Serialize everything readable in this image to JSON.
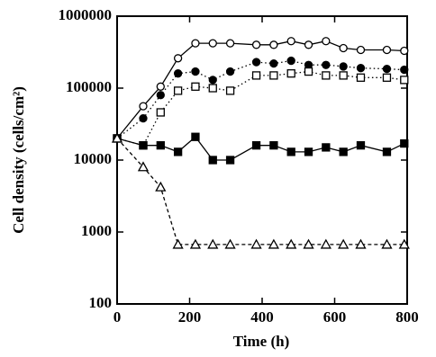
{
  "chart_data": {
    "type": "line",
    "log_y": true,
    "x_label": "Time (h)",
    "y_label": "Cell density (cells/cm²)",
    "xlim": [
      0,
      800
    ],
    "xticks": [
      0,
      200,
      400,
      600,
      800
    ],
    "ylim": [
      100,
      1000000
    ],
    "yticks": [
      100,
      1000,
      10000,
      100000,
      1000000
    ],
    "x": [
      0,
      72,
      120,
      168,
      216,
      264,
      312,
      384,
      432,
      480,
      528,
      576,
      624,
      672,
      744,
      792
    ],
    "series": [
      {
        "name": null,
        "color": "#000000",
        "marker": "circle-open",
        "dash": "solid",
        "values": [
          20000,
          56000,
          105000,
          260000,
          420000,
          420000,
          420000,
          400000,
          400000,
          450000,
          400000,
          450000,
          360000,
          340000,
          340000,
          330000
        ]
      },
      {
        "name": null,
        "color": "#000000",
        "marker": "circle-filled",
        "dash": "dotted",
        "values": [
          20000,
          38000,
          80000,
          160000,
          170000,
          130000,
          170000,
          230000,
          220000,
          240000,
          210000,
          210000,
          200000,
          190000,
          185000,
          180000
        ]
      },
      {
        "name": null,
        "color": "#000000",
        "marker": "square-open",
        "dash": "dotted",
        "values": [
          20000,
          16000,
          46000,
          92000,
          105000,
          100000,
          92000,
          150000,
          150000,
          160000,
          170000,
          150000,
          150000,
          140000,
          140000,
          130000
        ]
      },
      {
        "name": null,
        "color": "#000000",
        "marker": "square-filled",
        "dash": "solid",
        "values": [
          20000,
          16000,
          16000,
          13000,
          21000,
          10000,
          10000,
          16000,
          16000,
          13000,
          13000,
          15000,
          13000,
          16000,
          13000,
          17000
        ]
      },
      {
        "name": null,
        "color": "#000000",
        "marker": "triangle-open",
        "dash": "dashed",
        "values": [
          20000,
          8000,
          4200,
          670,
          670,
          670,
          670,
          670,
          670,
          670,
          670,
          670,
          670,
          670,
          670,
          670
        ]
      }
    ]
  }
}
